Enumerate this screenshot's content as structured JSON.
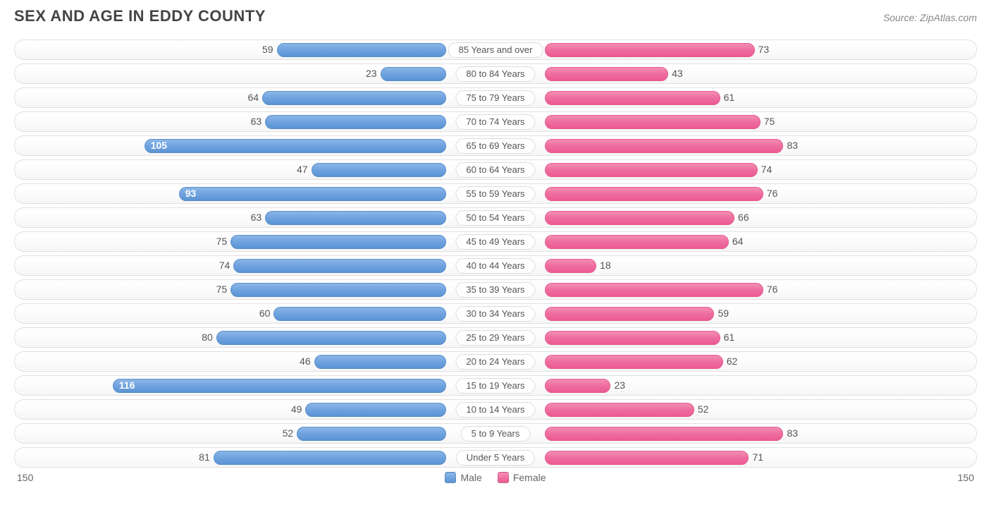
{
  "title": "SEX AND AGE IN EDDY COUNTY",
  "source": "Source: ZipAtlas.com",
  "chart": {
    "type": "population-pyramid",
    "axis_max": 150,
    "axis_label_left": "150",
    "axis_label_right": "150",
    "male_color": "#6fa3de",
    "female_color": "#ee6d9e",
    "row_bg": "#f8f8f8",
    "row_border": "#e0e0e0",
    "categories": [
      {
        "label": "85 Years and over",
        "male": 59,
        "female": 73
      },
      {
        "label": "80 to 84 Years",
        "male": 23,
        "female": 43
      },
      {
        "label": "75 to 79 Years",
        "male": 64,
        "female": 61
      },
      {
        "label": "70 to 74 Years",
        "male": 63,
        "female": 75
      },
      {
        "label": "65 to 69 Years",
        "male": 105,
        "female": 83
      },
      {
        "label": "60 to 64 Years",
        "male": 47,
        "female": 74
      },
      {
        "label": "55 to 59 Years",
        "male": 93,
        "female": 76
      },
      {
        "label": "50 to 54 Years",
        "male": 63,
        "female": 66
      },
      {
        "label": "45 to 49 Years",
        "male": 75,
        "female": 64
      },
      {
        "label": "40 to 44 Years",
        "male": 74,
        "female": 18
      },
      {
        "label": "35 to 39 Years",
        "male": 75,
        "female": 76
      },
      {
        "label": "30 to 34 Years",
        "male": 60,
        "female": 59
      },
      {
        "label": "25 to 29 Years",
        "male": 80,
        "female": 61
      },
      {
        "label": "20 to 24 Years",
        "male": 46,
        "female": 62
      },
      {
        "label": "15 to 19 Years",
        "male": 116,
        "female": 23
      },
      {
        "label": "10 to 14 Years",
        "male": 49,
        "female": 52
      },
      {
        "label": "5 to 9 Years",
        "male": 52,
        "female": 83
      },
      {
        "label": "Under 5 Years",
        "male": 81,
        "female": 71
      }
    ],
    "legend": {
      "male": "Male",
      "female": "Female"
    },
    "inside_label_threshold": 90,
    "fontsize_title": 22,
    "fontsize_value": 14,
    "fontsize_category": 13
  }
}
